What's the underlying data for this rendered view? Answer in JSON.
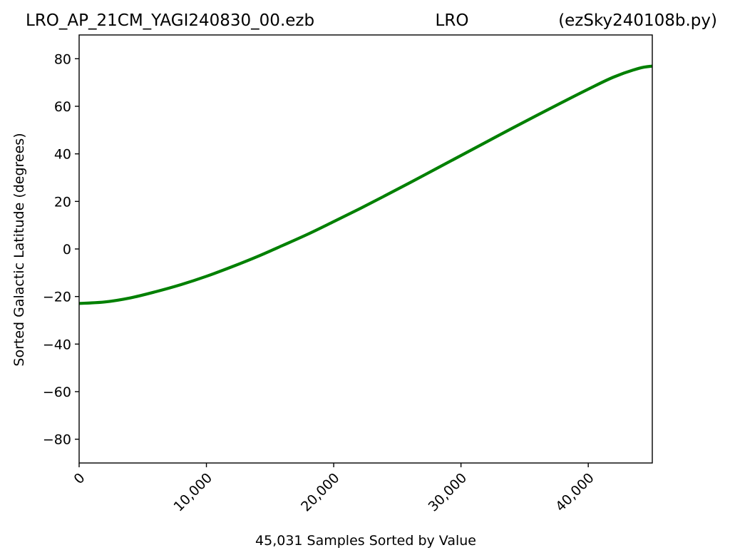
{
  "chart_data": {
    "type": "line",
    "title_parts": {
      "left": "LRO_AP_21CM_YAGI240830_00.ezb",
      "center": "LRO",
      "right": "(ezSky240108b.py)"
    },
    "xlabel": "45,031 Samples Sorted by Value",
    "ylabel": "Sorted Galactic Latitude (degrees)",
    "xlim": [
      0,
      45031
    ],
    "ylim": [
      -90,
      90
    ],
    "xticks": [
      0,
      10000,
      20000,
      30000,
      40000
    ],
    "xtick_labels": [
      "0",
      "10,000",
      "20,000",
      "30,000",
      "40,000"
    ],
    "yticks": [
      -80,
      -60,
      -40,
      -20,
      0,
      20,
      40,
      60,
      80
    ],
    "ytick_labels": [
      "−80",
      "−60",
      "−40",
      "−20",
      "0",
      "20",
      "40",
      "60",
      "80"
    ],
    "grid": false,
    "line_color": "#008000",
    "series": [
      {
        "x": [
          0,
          2000,
          4000,
          6000,
          8000,
          10000,
          12000,
          14000,
          16000,
          18000,
          20000,
          22000,
          24000,
          26000,
          28000,
          30000,
          32000,
          34000,
          36000,
          38000,
          40000,
          42000,
          44000,
          45031
        ],
        "values": [
          -22.9,
          -22.3,
          -20.6,
          -18.0,
          -15.0,
          -11.5,
          -7.5,
          -3.2,
          1.5,
          6.3,
          11.5,
          16.8,
          22.3,
          27.9,
          33.6,
          39.3,
          45.0,
          50.7,
          56.3,
          61.8,
          67.2,
          72.3,
          76.0,
          76.9
        ]
      }
    ]
  }
}
